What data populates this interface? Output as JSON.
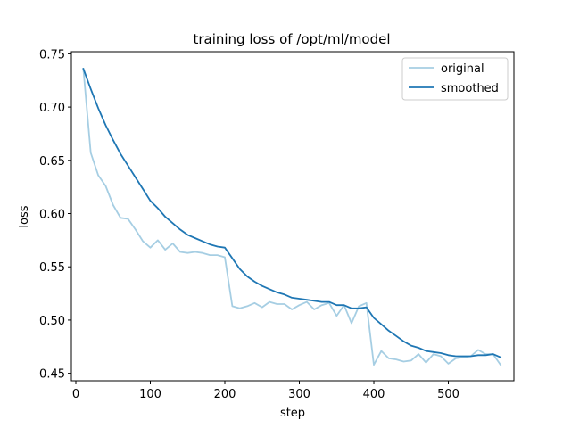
{
  "chart_data": {
    "type": "line",
    "title": "training loss of /opt/ml/model",
    "xlabel": "step",
    "ylabel": "loss",
    "xlim": [
      -6,
      588
    ],
    "ylim": [
      0.443,
      0.752
    ],
    "xticks": [
      0,
      100,
      200,
      300,
      400,
      500
    ],
    "yticks": [
      0.45,
      0.5,
      0.55,
      0.6,
      0.65,
      0.7,
      0.75
    ],
    "ytick_labels": [
      "0.45",
      "0.50",
      "0.55",
      "0.60",
      "0.65",
      "0.70",
      "0.75"
    ],
    "legend_position": "top-right",
    "grid": false,
    "series": [
      {
        "name": "original",
        "color": "#a6cee3",
        "x": [
          10,
          20,
          30,
          40,
          50,
          60,
          70,
          80,
          90,
          100,
          110,
          120,
          130,
          140,
          150,
          160,
          170,
          180,
          190,
          200,
          210,
          220,
          230,
          240,
          250,
          260,
          270,
          280,
          290,
          300,
          310,
          320,
          330,
          340,
          350,
          360,
          370,
          380,
          390,
          400,
          410,
          420,
          430,
          440,
          450,
          460,
          470,
          480,
          490,
          500,
          510,
          520,
          530,
          540,
          550,
          560,
          570
        ],
        "values": [
          0.736,
          0.657,
          0.636,
          0.626,
          0.608,
          0.596,
          0.595,
          0.585,
          0.574,
          0.568,
          0.575,
          0.566,
          0.572,
          0.564,
          0.563,
          0.564,
          0.563,
          0.561,
          0.561,
          0.559,
          0.513,
          0.511,
          0.513,
          0.516,
          0.512,
          0.517,
          0.515,
          0.515,
          0.51,
          0.514,
          0.517,
          0.51,
          0.514,
          0.516,
          0.504,
          0.514,
          0.497,
          0.513,
          0.516,
          0.458,
          0.471,
          0.464,
          0.463,
          0.461,
          0.462,
          0.468,
          0.46,
          0.468,
          0.466,
          0.459,
          0.464,
          0.465,
          0.466,
          0.472,
          0.468,
          0.468,
          0.458
        ]
      },
      {
        "name": "smoothed",
        "color": "#1f77b4",
        "x": [
          10,
          20,
          30,
          40,
          50,
          60,
          70,
          80,
          90,
          100,
          110,
          120,
          130,
          140,
          150,
          160,
          170,
          180,
          190,
          200,
          210,
          220,
          230,
          240,
          250,
          260,
          270,
          280,
          290,
          300,
          310,
          320,
          330,
          340,
          350,
          360,
          370,
          380,
          390,
          400,
          410,
          420,
          430,
          440,
          450,
          460,
          470,
          480,
          490,
          500,
          510,
          520,
          530,
          540,
          550,
          560,
          570
        ],
        "values": [
          0.736,
          0.717,
          0.699,
          0.683,
          0.669,
          0.656,
          0.645,
          0.634,
          0.623,
          0.612,
          0.605,
          0.597,
          0.591,
          0.585,
          0.58,
          0.577,
          0.574,
          0.571,
          0.569,
          0.568,
          0.558,
          0.548,
          0.541,
          0.536,
          0.532,
          0.529,
          0.526,
          0.524,
          0.521,
          0.52,
          0.519,
          0.518,
          0.517,
          0.517,
          0.514,
          0.514,
          0.511,
          0.511,
          0.512,
          0.502,
          0.496,
          0.49,
          0.485,
          0.48,
          0.476,
          0.474,
          0.471,
          0.47,
          0.469,
          0.467,
          0.466,
          0.466,
          0.466,
          0.467,
          0.467,
          0.468,
          0.465
        ]
      }
    ]
  }
}
